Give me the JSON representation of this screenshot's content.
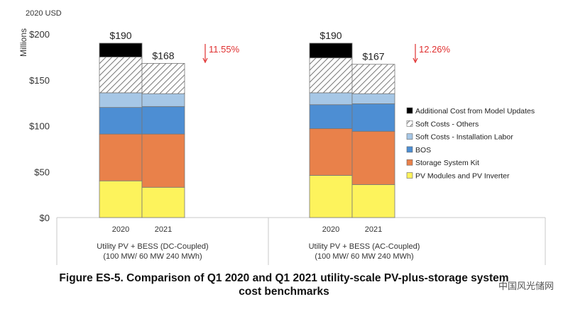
{
  "header": {
    "currency_label": "2020 USD"
  },
  "figure_caption": {
    "line1": "Figure ES-5. Comparison of Q1 2020 and Q1 2021 utility-scale PV-plus-storage system",
    "line2": "cost benchmarks"
  },
  "watermark": "中国风光储网",
  "colors": {
    "pv_modules": "#FDF35C",
    "storage_kit": "#E9814A",
    "bos": "#4D8ED3",
    "install_labor": "#A6C7E6",
    "soft_others": "#FFFFFF",
    "additional_cost": "#000000",
    "reduction_text": "#E03030",
    "reduction_arrow": "#E03030"
  },
  "chart_data": {
    "type": "stacked-bar",
    "ylabel": "Millions",
    "ylim": [
      0,
      200
    ],
    "yticks": [
      0,
      50,
      100,
      150,
      200
    ],
    "ytick_labels": [
      "$0",
      "$50",
      "$100",
      "$150",
      "$200"
    ],
    "legend_position": "right",
    "groups": [
      {
        "label_line1": "Utility PV + BESS (DC-Coupled)",
        "label_line2": "(100 MW/ 60 MW 240 MWh)",
        "reduction": "11.55%",
        "bars": [
          {
            "category": "2020",
            "total_label": "$190",
            "values": {
              "pv_modules": 40,
              "storage_kit": 51,
              "bos": 29,
              "install_labor": 16,
              "soft_others": 39,
              "additional_cost": 15
            }
          },
          {
            "category": "2021",
            "total_label": "$168",
            "values": {
              "pv_modules": 33,
              "storage_kit": 58,
              "bos": 30,
              "install_labor": 14,
              "soft_others": 33,
              "additional_cost": 0
            }
          }
        ]
      },
      {
        "label_line1": "Utility PV + BESS (AC-Coupled)",
        "label_line2": "(100 MW/ 60 MW 240 MWh)",
        "reduction": "12.26%",
        "bars": [
          {
            "category": "2020",
            "total_label": "$190",
            "values": {
              "pv_modules": 46,
              "storage_kit": 51,
              "bos": 26,
              "install_labor": 13,
              "soft_others": 38,
              "additional_cost": 16
            }
          },
          {
            "category": "2021",
            "total_label": "$167",
            "values": {
              "pv_modules": 36,
              "storage_kit": 58,
              "bos": 30,
              "install_labor": 11,
              "soft_others": 32,
              "additional_cost": 0
            }
          }
        ]
      }
    ],
    "series": [
      {
        "key": "pv_modules",
        "name": "PV Modules and PV Inverter"
      },
      {
        "key": "storage_kit",
        "name": "Storage System Kit"
      },
      {
        "key": "bos",
        "name": "BOS"
      },
      {
        "key": "install_labor",
        "name": "Soft Costs - Installation Labor"
      },
      {
        "key": "soft_others",
        "name": "Soft Costs - Others",
        "pattern": "hatched"
      },
      {
        "key": "additional_cost",
        "name": "Additional Cost from Model Updates"
      }
    ]
  }
}
